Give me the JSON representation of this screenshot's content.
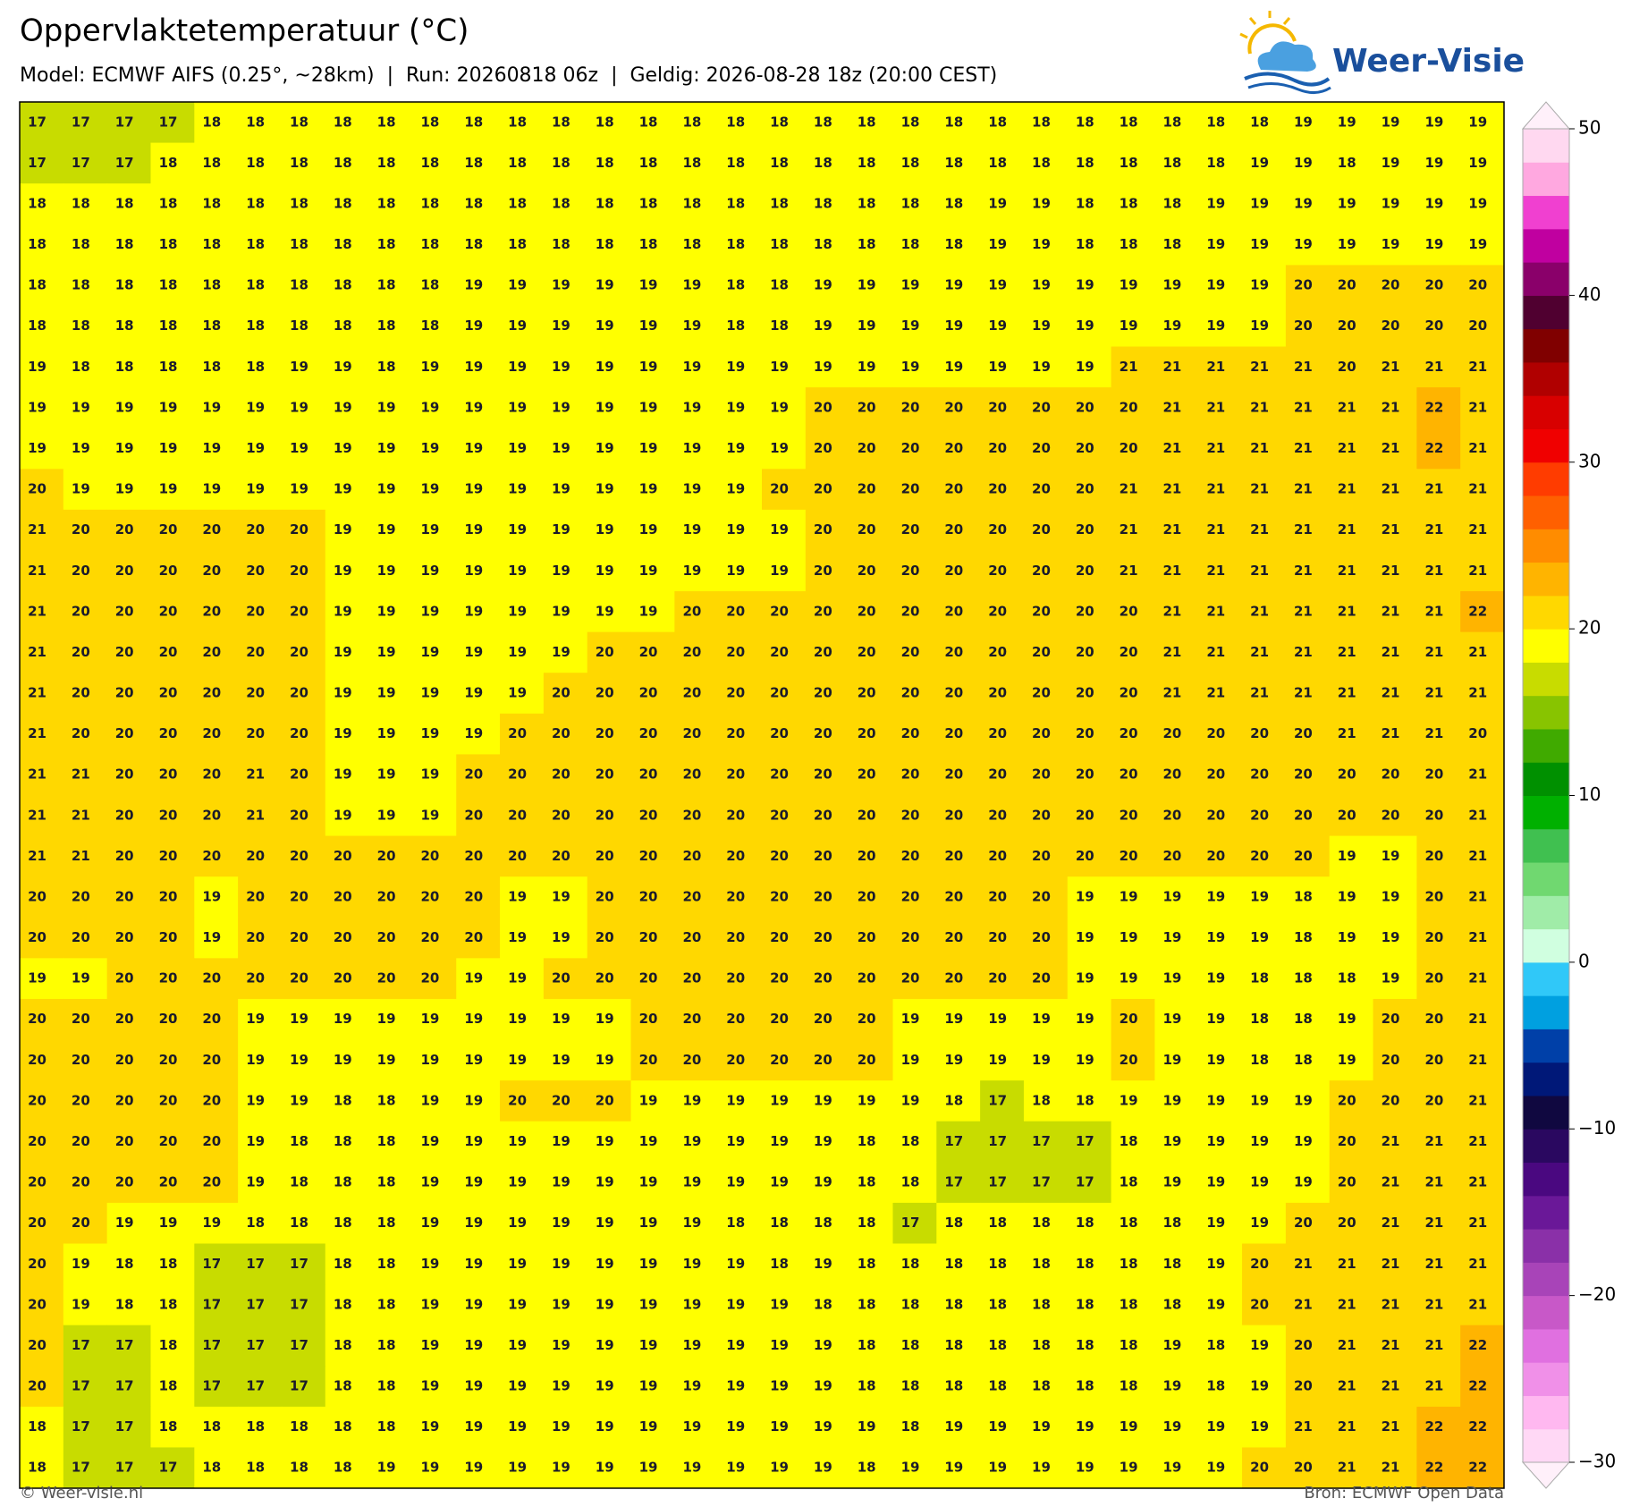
{
  "header": {
    "title": "Oppervlaktetemperatuur (°C)",
    "subtitle": "Model: ECMWF AIFS (0.25°, ~28km)  |  Run: 20260818 06z  |  Geldig: 2026-08-28 18z (20:00 CEST)",
    "logo": "Weer-Visie"
  },
  "map": {
    "grid": [
      [
        17,
        17,
        17,
        17,
        18,
        18,
        18,
        18,
        18,
        18,
        18,
        18,
        18,
        18,
        18,
        18,
        18,
        18,
        18,
        18,
        18,
        18,
        18,
        18,
        18,
        18,
        18,
        18,
        18,
        19,
        19,
        19,
        19,
        19
      ],
      [
        17,
        17,
        17,
        18,
        18,
        18,
        18,
        18,
        18,
        18,
        18,
        18,
        18,
        18,
        18,
        18,
        18,
        18,
        18,
        18,
        18,
        18,
        18,
        18,
        18,
        18,
        18,
        18,
        19,
        19,
        18,
        19,
        19,
        19
      ],
      [
        18,
        18,
        18,
        18,
        18,
        18,
        18,
        18,
        18,
        18,
        18,
        18,
        18,
        18,
        18,
        18,
        18,
        18,
        18,
        18,
        18,
        18,
        19,
        19,
        18,
        18,
        18,
        19,
        19,
        19,
        19,
        19,
        19,
        19
      ],
      [
        18,
        18,
        18,
        18,
        18,
        18,
        18,
        18,
        18,
        18,
        18,
        18,
        18,
        18,
        18,
        18,
        18,
        18,
        18,
        18,
        18,
        18,
        19,
        19,
        18,
        18,
        18,
        19,
        19,
        19,
        19,
        19,
        19,
        19
      ],
      [
        18,
        18,
        18,
        18,
        18,
        18,
        18,
        18,
        18,
        18,
        19,
        19,
        19,
        19,
        19,
        19,
        18,
        18,
        19,
        19,
        19,
        19,
        19,
        19,
        19,
        19,
        19,
        19,
        19,
        20,
        20,
        20,
        20,
        20
      ],
      [
        18,
        18,
        18,
        18,
        18,
        18,
        18,
        18,
        18,
        18,
        19,
        19,
        19,
        19,
        19,
        19,
        18,
        18,
        19,
        19,
        19,
        19,
        19,
        19,
        19,
        19,
        19,
        19,
        19,
        20,
        20,
        20,
        20,
        20
      ],
      [
        19,
        18,
        18,
        18,
        18,
        18,
        19,
        19,
        18,
        19,
        19,
        19,
        19,
        19,
        19,
        19,
        19,
        19,
        19,
        19,
        19,
        19,
        19,
        19,
        19,
        21,
        21,
        21,
        21,
        21,
        20,
        21,
        21,
        21
      ],
      [
        19,
        19,
        19,
        19,
        19,
        19,
        19,
        19,
        19,
        19,
        19,
        19,
        19,
        19,
        19,
        19,
        19,
        19,
        20,
        20,
        20,
        20,
        20,
        20,
        20,
        20,
        21,
        21,
        21,
        21,
        21,
        21,
        22,
        21
      ],
      [
        19,
        19,
        19,
        19,
        19,
        19,
        19,
        19,
        19,
        19,
        19,
        19,
        19,
        19,
        19,
        19,
        19,
        19,
        20,
        20,
        20,
        20,
        20,
        20,
        20,
        20,
        21,
        21,
        21,
        21,
        21,
        21,
        22,
        21
      ],
      [
        20,
        19,
        19,
        19,
        19,
        19,
        19,
        19,
        19,
        19,
        19,
        19,
        19,
        19,
        19,
        19,
        19,
        20,
        20,
        20,
        20,
        20,
        20,
        20,
        20,
        21,
        21,
        21,
        21,
        21,
        21,
        21,
        21,
        21
      ],
      [
        21,
        20,
        20,
        20,
        20,
        20,
        20,
        19,
        19,
        19,
        19,
        19,
        19,
        19,
        19,
        19,
        19,
        19,
        20,
        20,
        20,
        20,
        20,
        20,
        20,
        21,
        21,
        21,
        21,
        21,
        21,
        21,
        21,
        21
      ],
      [
        21,
        20,
        20,
        20,
        20,
        20,
        20,
        19,
        19,
        19,
        19,
        19,
        19,
        19,
        19,
        19,
        19,
        19,
        20,
        20,
        20,
        20,
        20,
        20,
        20,
        21,
        21,
        21,
        21,
        21,
        21,
        21,
        21,
        21
      ],
      [
        21,
        20,
        20,
        20,
        20,
        20,
        20,
        19,
        19,
        19,
        19,
        19,
        19,
        19,
        19,
        20,
        20,
        20,
        20,
        20,
        20,
        20,
        20,
        20,
        20,
        20,
        21,
        21,
        21,
        21,
        21,
        21,
        21,
        22
      ],
      [
        21,
        20,
        20,
        20,
        20,
        20,
        20,
        19,
        19,
        19,
        19,
        19,
        19,
        20,
        20,
        20,
        20,
        20,
        20,
        20,
        20,
        20,
        20,
        20,
        20,
        20,
        21,
        21,
        21,
        21,
        21,
        21,
        21,
        21
      ],
      [
        21,
        20,
        20,
        20,
        20,
        20,
        20,
        19,
        19,
        19,
        19,
        19,
        20,
        20,
        20,
        20,
        20,
        20,
        20,
        20,
        20,
        20,
        20,
        20,
        20,
        20,
        21,
        21,
        21,
        21,
        21,
        21,
        21,
        21
      ],
      [
        21,
        20,
        20,
        20,
        20,
        20,
        20,
        19,
        19,
        19,
        19,
        20,
        20,
        20,
        20,
        20,
        20,
        20,
        20,
        20,
        20,
        20,
        20,
        20,
        20,
        20,
        20,
        20,
        20,
        20,
        21,
        21,
        21,
        20
      ],
      [
        21,
        21,
        20,
        20,
        20,
        21,
        20,
        19,
        19,
        19,
        20,
        20,
        20,
        20,
        20,
        20,
        20,
        20,
        20,
        20,
        20,
        20,
        20,
        20,
        20,
        20,
        20,
        20,
        20,
        20,
        20,
        20,
        20,
        21
      ],
      [
        21,
        21,
        20,
        20,
        20,
        21,
        20,
        19,
        19,
        19,
        20,
        20,
        20,
        20,
        20,
        20,
        20,
        20,
        20,
        20,
        20,
        20,
        20,
        20,
        20,
        20,
        20,
        20,
        20,
        20,
        20,
        20,
        20,
        21
      ],
      [
        21,
        21,
        20,
        20,
        20,
        20,
        20,
        20,
        20,
        20,
        20,
        20,
        20,
        20,
        20,
        20,
        20,
        20,
        20,
        20,
        20,
        20,
        20,
        20,
        20,
        20,
        20,
        20,
        20,
        20,
        19,
        19,
        20,
        21
      ],
      [
        20,
        20,
        20,
        20,
        19,
        20,
        20,
        20,
        20,
        20,
        20,
        19,
        19,
        20,
        20,
        20,
        20,
        20,
        20,
        20,
        20,
        20,
        20,
        20,
        19,
        19,
        19,
        19,
        19,
        18,
        19,
        19,
        20,
        21
      ],
      [
        20,
        20,
        20,
        20,
        19,
        20,
        20,
        20,
        20,
        20,
        20,
        19,
        19,
        20,
        20,
        20,
        20,
        20,
        20,
        20,
        20,
        20,
        20,
        20,
        19,
        19,
        19,
        19,
        19,
        18,
        19,
        19,
        20,
        21
      ],
      [
        19,
        19,
        20,
        20,
        20,
        20,
        20,
        20,
        20,
        20,
        19,
        19,
        20,
        20,
        20,
        20,
        20,
        20,
        20,
        20,
        20,
        20,
        20,
        20,
        19,
        19,
        19,
        19,
        18,
        18,
        18,
        19,
        20,
        21
      ],
      [
        20,
        20,
        20,
        20,
        20,
        19,
        19,
        19,
        19,
        19,
        19,
        19,
        19,
        19,
        20,
        20,
        20,
        20,
        20,
        20,
        19,
        19,
        19,
        19,
        19,
        20,
        19,
        19,
        18,
        18,
        19,
        20,
        20,
        21
      ],
      [
        20,
        20,
        20,
        20,
        20,
        19,
        19,
        19,
        19,
        19,
        19,
        19,
        19,
        19,
        20,
        20,
        20,
        20,
        20,
        20,
        19,
        19,
        19,
        19,
        19,
        20,
        19,
        19,
        18,
        18,
        19,
        20,
        20,
        21
      ],
      [
        20,
        20,
        20,
        20,
        20,
        19,
        19,
        18,
        18,
        19,
        19,
        20,
        20,
        20,
        19,
        19,
        19,
        19,
        19,
        19,
        19,
        18,
        17,
        18,
        18,
        19,
        19,
        19,
        19,
        19,
        20,
        20,
        20,
        21
      ],
      [
        20,
        20,
        20,
        20,
        20,
        19,
        18,
        18,
        18,
        19,
        19,
        19,
        19,
        19,
        19,
        19,
        19,
        19,
        19,
        18,
        18,
        17,
        17,
        17,
        17,
        18,
        19,
        19,
        19,
        19,
        20,
        21,
        21,
        21
      ],
      [
        20,
        20,
        20,
        20,
        20,
        19,
        18,
        18,
        18,
        19,
        19,
        19,
        19,
        19,
        19,
        19,
        19,
        19,
        19,
        18,
        18,
        17,
        17,
        17,
        17,
        18,
        19,
        19,
        19,
        19,
        20,
        21,
        21,
        21
      ],
      [
        20,
        20,
        19,
        19,
        19,
        18,
        18,
        18,
        18,
        19,
        19,
        19,
        19,
        19,
        19,
        19,
        18,
        18,
        18,
        18,
        17,
        18,
        18,
        18,
        18,
        18,
        18,
        19,
        19,
        20,
        20,
        21,
        21,
        21
      ],
      [
        20,
        19,
        18,
        18,
        17,
        17,
        17,
        18,
        18,
        19,
        19,
        19,
        19,
        19,
        19,
        19,
        19,
        18,
        19,
        18,
        18,
        18,
        18,
        18,
        18,
        18,
        18,
        19,
        20,
        21,
        21,
        21,
        21,
        21
      ],
      [
        20,
        19,
        18,
        18,
        17,
        17,
        17,
        18,
        18,
        19,
        19,
        19,
        19,
        19,
        19,
        19,
        19,
        19,
        18,
        18,
        18,
        18,
        18,
        18,
        18,
        18,
        18,
        19,
        20,
        21,
        21,
        21,
        21,
        21
      ],
      [
        20,
        17,
        17,
        18,
        17,
        17,
        17,
        18,
        18,
        19,
        19,
        19,
        19,
        19,
        19,
        19,
        19,
        19,
        19,
        18,
        18,
        18,
        18,
        18,
        18,
        18,
        19,
        18,
        19,
        20,
        21,
        21,
        21,
        22
      ],
      [
        20,
        17,
        17,
        18,
        17,
        17,
        17,
        18,
        18,
        19,
        19,
        19,
        19,
        19,
        19,
        19,
        19,
        19,
        19,
        18,
        18,
        18,
        18,
        18,
        18,
        18,
        19,
        18,
        19,
        20,
        21,
        21,
        21,
        22
      ],
      [
        18,
        17,
        17,
        18,
        18,
        18,
        18,
        18,
        18,
        19,
        19,
        19,
        19,
        19,
        19,
        19,
        19,
        19,
        19,
        19,
        18,
        19,
        19,
        19,
        19,
        19,
        19,
        19,
        19,
        21,
        21,
        21,
        22,
        22
      ],
      [
        18,
        17,
        17,
        17,
        18,
        18,
        18,
        18,
        19,
        19,
        19,
        19,
        19,
        19,
        19,
        19,
        19,
        19,
        19,
        18,
        19,
        19,
        19,
        19,
        19,
        19,
        19,
        19,
        20,
        20,
        21,
        21,
        22,
        22
      ]
    ]
  },
  "colorbar": {
    "lim": [
      -30,
      50
    ],
    "colors": [
      "#ffd8f5",
      "#ffb8f0",
      "#f090e8",
      "#e070e0",
      "#c858c8",
      "#a844b8",
      "#8a30a8",
      "#6a1898",
      "#4a0880",
      "#2a0860",
      "#100840",
      "#001878",
      "#0040a8",
      "#00a0e0",
      "#30c8f8",
      "#d0ffe0",
      "#a0eca8",
      "#70d870",
      "#40c050",
      "#00b000",
      "#009000",
      "#40aa00",
      "#88c400",
      "#c8dc00",
      "#ffff00",
      "#ffd800",
      "#ffb400",
      "#ff8c00",
      "#ff6000",
      "#ff3c00",
      "#f00000",
      "#d80000",
      "#b00000",
      "#800000",
      "#500030",
      "#8a006a",
      "#c000a0",
      "#f040d0",
      "#ffa8e0",
      "#ffd8f0"
    ],
    "extend_colors": [
      "#fff0fa",
      "#fff0fa"
    ],
    "ticks": [
      {
        "value": -30,
        "label": "−30"
      },
      {
        "value": -20,
        "label": "−20"
      },
      {
        "value": -10,
        "label": "−10"
      },
      0,
      10,
      20,
      30,
      40,
      50
    ]
  },
  "footer": {
    "left": "© Weer-visie.nl",
    "right": "Bron: ECMWF Open Data"
  }
}
